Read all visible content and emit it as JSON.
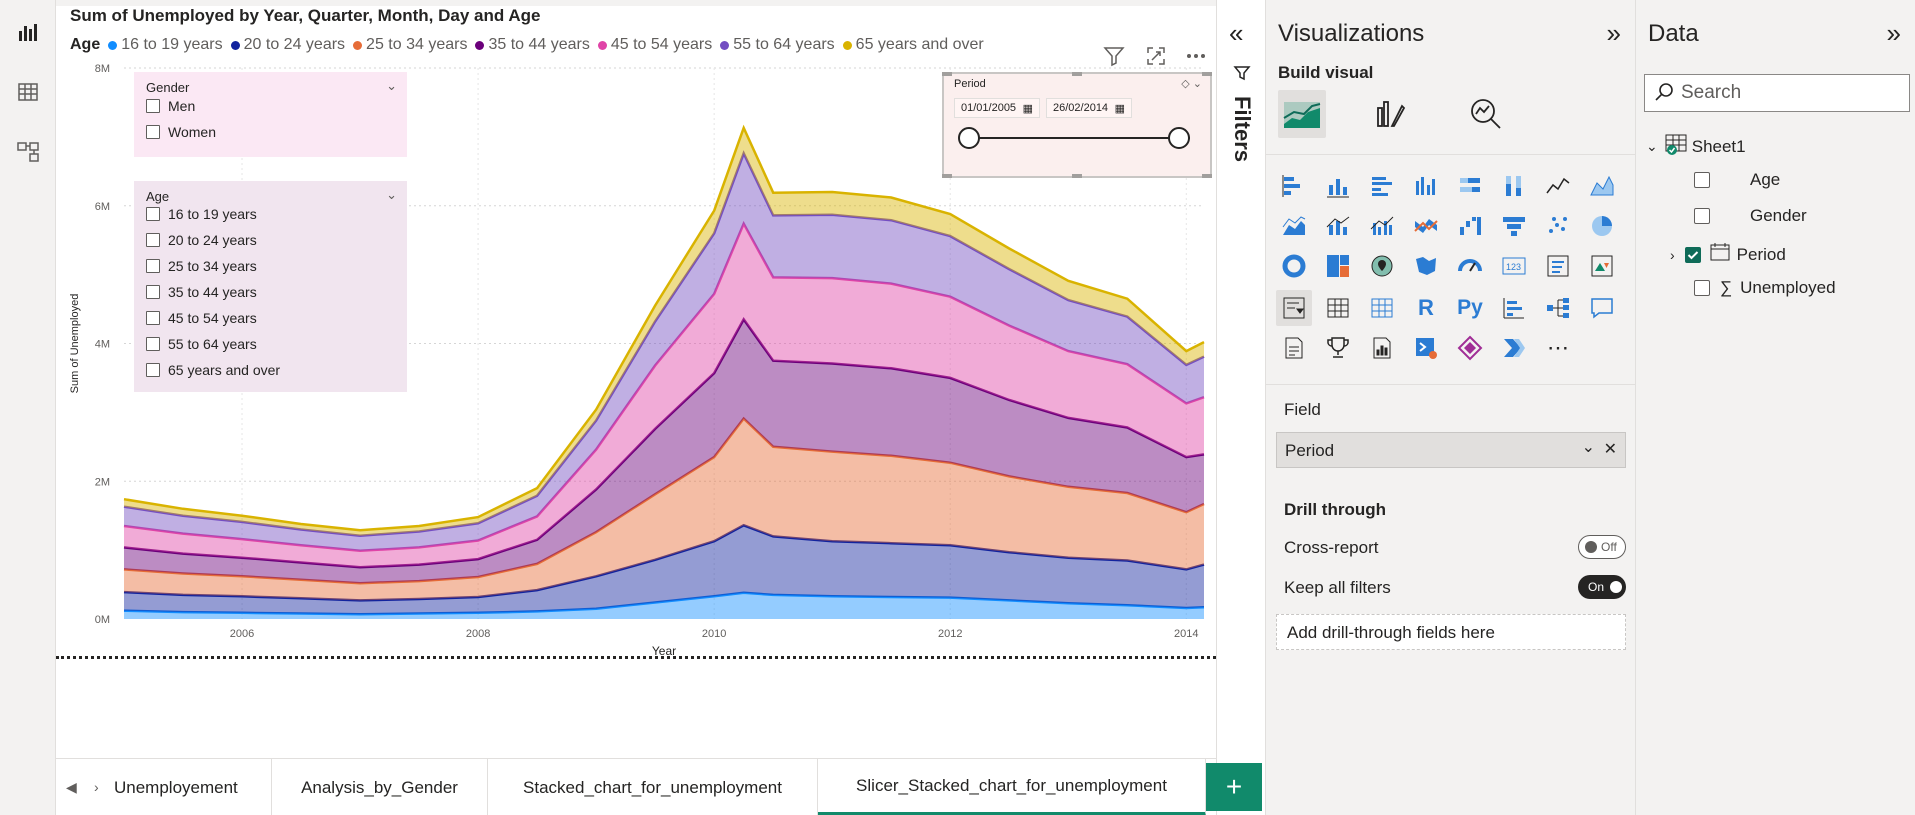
{
  "visual": {
    "title": "Sum of Unemployed by Year, Quarter, Month, Day and Age",
    "legend_title": "Age",
    "legend": [
      {
        "label": "16 to 19 years",
        "color": "#118dff"
      },
      {
        "label": "20 to 24 years",
        "color": "#12239e"
      },
      {
        "label": "25 to 34 years",
        "color": "#e66c37"
      },
      {
        "label": "35 to 44 years",
        "color": "#6b007b"
      },
      {
        "label": "45 to 54 years",
        "color": "#e044a7"
      },
      {
        "label": "55 to 64 years",
        "color": "#744ec2"
      },
      {
        "label": "65 years and over",
        "color": "#d9b300"
      }
    ]
  },
  "slicer_gender": {
    "title": "Gender",
    "options": [
      "Men",
      "Women"
    ]
  },
  "slicer_age": {
    "title": "Age",
    "options": [
      "16 to 19 years",
      "20 to 24 years",
      "25 to 34 years",
      "35 to 44 years",
      "45 to 54 years",
      "55 to 64 years",
      "65 years and over"
    ]
  },
  "period_slicer": {
    "title": "Period",
    "start": "01/01/2005",
    "end": "26/02/2014"
  },
  "filters_label": "Filters",
  "viz_pane": {
    "title": "Visualizations",
    "build_visual": "Build visual",
    "field_label": "Field",
    "field_value": "Period",
    "drill_through": "Drill through",
    "cross_report": "Cross-report",
    "cross_report_state": "Off",
    "keep_filters": "Keep all filters",
    "keep_filters_state": "On",
    "add_drill": "Add drill-through fields here"
  },
  "data_pane": {
    "title": "Data",
    "search_placeholder": "Search",
    "table": "Sheet1",
    "fields": [
      "Age",
      "Gender",
      "Period",
      "Unemployed"
    ]
  },
  "tabs": {
    "items": [
      "Unemployement",
      "Analysis_by_Gender",
      "Stacked_chart_for_unemployment",
      "Slicer_Stacked_chart_for_unemployment"
    ],
    "active_index": 3
  },
  "chart_data": {
    "type": "area",
    "stacked": true,
    "xlabel": "Year",
    "ylabel": "Sum of Unemployed",
    "xlim": [
      2005.0,
      2014.15
    ],
    "ylim": [
      0,
      8000000
    ],
    "x_ticks": [
      "2006",
      "2008",
      "2010",
      "2012",
      "2014"
    ],
    "y_ticks": [
      "0M",
      "2M",
      "4M",
      "6M",
      "8M"
    ],
    "x": [
      2005.0,
      2005.5,
      2006.0,
      2006.5,
      2007.0,
      2007.5,
      2008.0,
      2008.5,
      2009.0,
      2009.5,
      2010.0,
      2010.25,
      2010.5,
      2011.0,
      2011.5,
      2012.0,
      2012.5,
      2013.0,
      2013.5,
      2014.0,
      2014.15
    ],
    "series": [
      {
        "name": "16 to 19 years",
        "values": [
          120000,
          100000,
          90000,
          80000,
          70000,
          80000,
          90000,
          110000,
          150000,
          240000,
          330000,
          380000,
          350000,
          330000,
          320000,
          310000,
          270000,
          230000,
          200000,
          160000,
          170000
        ]
      },
      {
        "name": "20 to 24 years",
        "values": [
          270000,
          250000,
          240000,
          220000,
          200000,
          210000,
          230000,
          310000,
          470000,
          620000,
          800000,
          980000,
          850000,
          800000,
          780000,
          760000,
          700000,
          660000,
          650000,
          560000,
          620000
        ]
      },
      {
        "name": "25 to 34 years",
        "values": [
          330000,
          310000,
          290000,
          270000,
          250000,
          260000,
          290000,
          380000,
          640000,
          950000,
          1220000,
          1550000,
          1300000,
          1300000,
          1270000,
          1200000,
          1100000,
          1030000,
          980000,
          830000,
          880000
        ]
      },
      {
        "name": "35 to 44 years",
        "values": [
          320000,
          290000,
          270000,
          250000,
          230000,
          240000,
          260000,
          350000,
          620000,
          950000,
          1220000,
          1440000,
          1250000,
          1280000,
          1270000,
          1230000,
          1110000,
          1000000,
          950000,
          800000,
          720000
        ]
      },
      {
        "name": "45 to 54 years",
        "values": [
          310000,
          290000,
          270000,
          250000,
          240000,
          250000,
          270000,
          340000,
          580000,
          920000,
          1150000,
          1390000,
          1210000,
          1240000,
          1230000,
          1180000,
          1080000,
          970000,
          920000,
          780000,
          830000
        ]
      },
      {
        "name": "55 to 64 years",
        "values": [
          280000,
          260000,
          250000,
          230000,
          220000,
          230000,
          250000,
          300000,
          420000,
          640000,
          880000,
          1020000,
          900000,
          920000,
          920000,
          880000,
          820000,
          740000,
          690000,
          560000,
          590000
        ]
      },
      {
        "name": "65 years and over",
        "values": [
          110000,
          100000,
          90000,
          80000,
          80000,
          80000,
          90000,
          110000,
          160000,
          230000,
          330000,
          370000,
          330000,
          330000,
          330000,
          320000,
          300000,
          280000,
          260000,
          200000,
          210000
        ]
      }
    ]
  }
}
